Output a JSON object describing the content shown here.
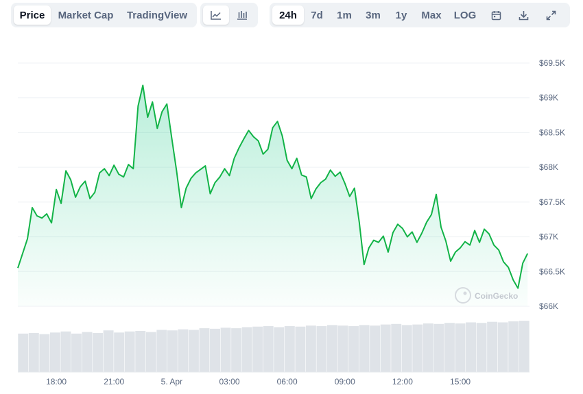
{
  "toolbar": {
    "data_tabs": [
      {
        "id": "price",
        "label": "Price",
        "active": true
      },
      {
        "id": "market-cap",
        "label": "Market Cap",
        "active": false
      },
      {
        "id": "tradingview",
        "label": "TradingView",
        "active": false
      }
    ],
    "chart_type_icons": [
      "line-chart-icon",
      "candlestick-chart-icon"
    ],
    "ranges": [
      {
        "id": "24h",
        "label": "24h",
        "active": true
      },
      {
        "id": "7d",
        "label": "7d",
        "active": false
      },
      {
        "id": "1m",
        "label": "1m",
        "active": false
      },
      {
        "id": "3m",
        "label": "3m",
        "active": false
      },
      {
        "id": "1y",
        "label": "1y",
        "active": false
      },
      {
        "id": "max",
        "label": "Max",
        "active": false
      },
      {
        "id": "log",
        "label": "LOG",
        "active": false
      }
    ],
    "tool_icons": [
      "calendar-icon",
      "download-icon",
      "expand-icon"
    ]
  },
  "watermark": "CoinGecko",
  "colors": {
    "line": "#16c784",
    "line_stroke": "#12b347",
    "volume": "#dfe3e8",
    "grid": "#eff2f5"
  },
  "chart_data": {
    "type": "area",
    "series": [
      {
        "values": [
          [
            0.0,
            66550
          ],
          [
            0.5,
            66970
          ],
          [
            0.75,
            67420
          ],
          [
            1.0,
            67300
          ],
          [
            1.25,
            67270
          ],
          [
            1.5,
            67330
          ],
          [
            1.75,
            67200
          ],
          [
            2.0,
            67680
          ],
          [
            2.25,
            67480
          ],
          [
            2.5,
            67950
          ],
          [
            2.75,
            67820
          ],
          [
            3.0,
            67570
          ],
          [
            3.25,
            67720
          ],
          [
            3.5,
            67800
          ],
          [
            3.75,
            67550
          ],
          [
            4.0,
            67640
          ],
          [
            4.25,
            67920
          ],
          [
            4.5,
            67980
          ],
          [
            4.75,
            67880
          ],
          [
            5.0,
            68030
          ],
          [
            5.25,
            67900
          ],
          [
            5.5,
            67860
          ],
          [
            5.75,
            68040
          ],
          [
            6.0,
            67980
          ],
          [
            6.25,
            68880
          ],
          [
            6.5,
            69180
          ],
          [
            6.75,
            68720
          ],
          [
            7.0,
            68940
          ],
          [
            7.25,
            68560
          ],
          [
            7.5,
            68800
          ],
          [
            7.75,
            68910
          ],
          [
            8.0,
            68420
          ],
          [
            8.25,
            67950
          ],
          [
            8.5,
            67420
          ],
          [
            8.75,
            67700
          ],
          [
            9.0,
            67840
          ],
          [
            9.25,
            67920
          ],
          [
            9.5,
            67970
          ],
          [
            9.75,
            68020
          ],
          [
            10.0,
            67620
          ],
          [
            10.25,
            67780
          ],
          [
            10.5,
            67860
          ],
          [
            10.75,
            67980
          ],
          [
            11.0,
            67880
          ],
          [
            11.25,
            68130
          ],
          [
            11.5,
            68280
          ],
          [
            11.75,
            68410
          ],
          [
            12.0,
            68530
          ],
          [
            12.25,
            68440
          ],
          [
            12.5,
            68380
          ],
          [
            12.75,
            68190
          ],
          [
            13.0,
            68260
          ],
          [
            13.25,
            68570
          ],
          [
            13.5,
            68660
          ],
          [
            13.75,
            68450
          ],
          [
            14.0,
            68100
          ],
          [
            14.25,
            67980
          ],
          [
            14.5,
            68130
          ],
          [
            14.75,
            67890
          ],
          [
            15.0,
            67860
          ],
          [
            15.25,
            67550
          ],
          [
            15.5,
            67690
          ],
          [
            15.75,
            67780
          ],
          [
            16.0,
            67830
          ],
          [
            16.25,
            67960
          ],
          [
            16.5,
            67870
          ],
          [
            16.75,
            67930
          ],
          [
            17.0,
            67770
          ],
          [
            17.25,
            67580
          ],
          [
            17.5,
            67700
          ],
          [
            17.75,
            67210
          ],
          [
            18.0,
            66600
          ],
          [
            18.25,
            66840
          ],
          [
            18.5,
            66950
          ],
          [
            18.75,
            66920
          ],
          [
            19.0,
            67010
          ],
          [
            19.25,
            66780
          ],
          [
            19.5,
            67060
          ],
          [
            19.75,
            67180
          ],
          [
            20.0,
            67120
          ],
          [
            20.25,
            67000
          ],
          [
            20.5,
            67070
          ],
          [
            20.75,
            66920
          ],
          [
            21.0,
            67050
          ],
          [
            21.25,
            67210
          ],
          [
            21.5,
            67320
          ],
          [
            21.75,
            67610
          ],
          [
            22.0,
            67140
          ],
          [
            22.25,
            66940
          ],
          [
            22.5,
            66650
          ],
          [
            22.75,
            66780
          ],
          [
            23.0,
            66840
          ],
          [
            23.25,
            66930
          ],
          [
            23.5,
            66880
          ],
          [
            23.75,
            67090
          ],
          [
            24.0,
            66920
          ],
          [
            24.25,
            67110
          ],
          [
            24.5,
            67040
          ],
          [
            24.75,
            66880
          ],
          [
            25.0,
            66810
          ],
          [
            25.25,
            66640
          ],
          [
            25.5,
            66560
          ],
          [
            25.75,
            66380
          ],
          [
            26.0,
            66260
          ],
          [
            26.25,
            66620
          ],
          [
            26.5,
            66760
          ]
        ]
      }
    ],
    "x_tick_labels": [
      {
        "x": 2.0,
        "label": "18:00"
      },
      {
        "x": 5.0,
        "label": "21:00"
      },
      {
        "x": 8.0,
        "label": "5. Apr"
      },
      {
        "x": 11.0,
        "label": "03:00"
      },
      {
        "x": 14.0,
        "label": "06:00"
      },
      {
        "x": 17.0,
        "label": "09:00"
      },
      {
        "x": 20.0,
        "label": "12:00"
      },
      {
        "x": 23.0,
        "label": "15:00"
      }
    ],
    "y_ticks": [
      66000,
      66500,
      67000,
      67500,
      68000,
      68500,
      69000,
      69500
    ],
    "y_tick_labels": [
      "$66K",
      "$66.5K",
      "$67K",
      "$67.5K",
      "$68K",
      "$68.5K",
      "$69K",
      "$69.5K"
    ],
    "xlim": [
      0.0,
      26.6
    ],
    "ylim": [
      66000,
      69500
    ],
    "volume": [
      0.72,
      0.73,
      0.71,
      0.74,
      0.76,
      0.72,
      0.75,
      0.73,
      0.78,
      0.74,
      0.76,
      0.77,
      0.75,
      0.79,
      0.78,
      0.8,
      0.79,
      0.82,
      0.81,
      0.83,
      0.82,
      0.84,
      0.85,
      0.86,
      0.84,
      0.86,
      0.85,
      0.87,
      0.86,
      0.88,
      0.87,
      0.86,
      0.88,
      0.87,
      0.89,
      0.9,
      0.88,
      0.89,
      0.91,
      0.9,
      0.92,
      0.91,
      0.93,
      0.92,
      0.94,
      0.93,
      0.95,
      0.96
    ],
    "grid": true,
    "legend": "none"
  }
}
